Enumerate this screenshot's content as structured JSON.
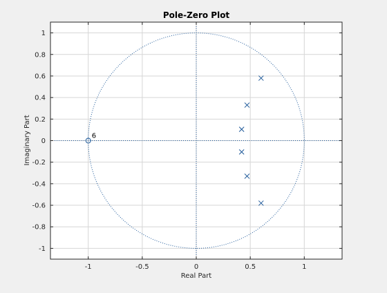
{
  "chart_data": {
    "type": "scatter",
    "title": "Pole-Zero Plot",
    "xlabel": "Real Part",
    "ylabel": "Imaginary Part",
    "xlim": [
      -1.35,
      1.35
    ],
    "ylim": [
      -1.1,
      1.1
    ],
    "xticks": [
      -1,
      -0.5,
      0,
      0.5,
      1
    ],
    "xtick_labels": [
      "-1",
      "-0.5",
      "0",
      "0.5",
      "1"
    ],
    "yticks": [
      -1,
      -0.8,
      -0.6,
      -0.4,
      -0.2,
      0,
      0.2,
      0.4,
      0.6,
      0.8,
      1
    ],
    "ytick_labels": [
      "-1",
      "-0.8",
      "-0.6",
      "-0.4",
      "-0.2",
      "0",
      "0.2",
      "0.4",
      "0.6",
      "0.8",
      "1"
    ],
    "grid": true,
    "unit_circle": true,
    "series": [
      {
        "marker": "x",
        "points": [
          {
            "x": 0.6,
            "y": 0.58
          },
          {
            "x": 0.47,
            "y": 0.33
          },
          {
            "x": 0.42,
            "y": 0.105
          },
          {
            "x": 0.42,
            "y": -0.105
          },
          {
            "x": 0.47,
            "y": -0.33
          },
          {
            "x": 0.6,
            "y": -0.58
          }
        ]
      },
      {
        "marker": "o",
        "points": [
          {
            "x": -1.0,
            "y": 0.0
          }
        ]
      }
    ],
    "annotations": [
      {
        "text": "6",
        "x": -1.0,
        "y": 0.0
      }
    ],
    "colors": {
      "marker": "#1f5a9a",
      "grid": "#d6d6d6",
      "axes_bg": "#ffffff",
      "figure_bg": "#f0f0f0",
      "text": "#262626"
    }
  }
}
